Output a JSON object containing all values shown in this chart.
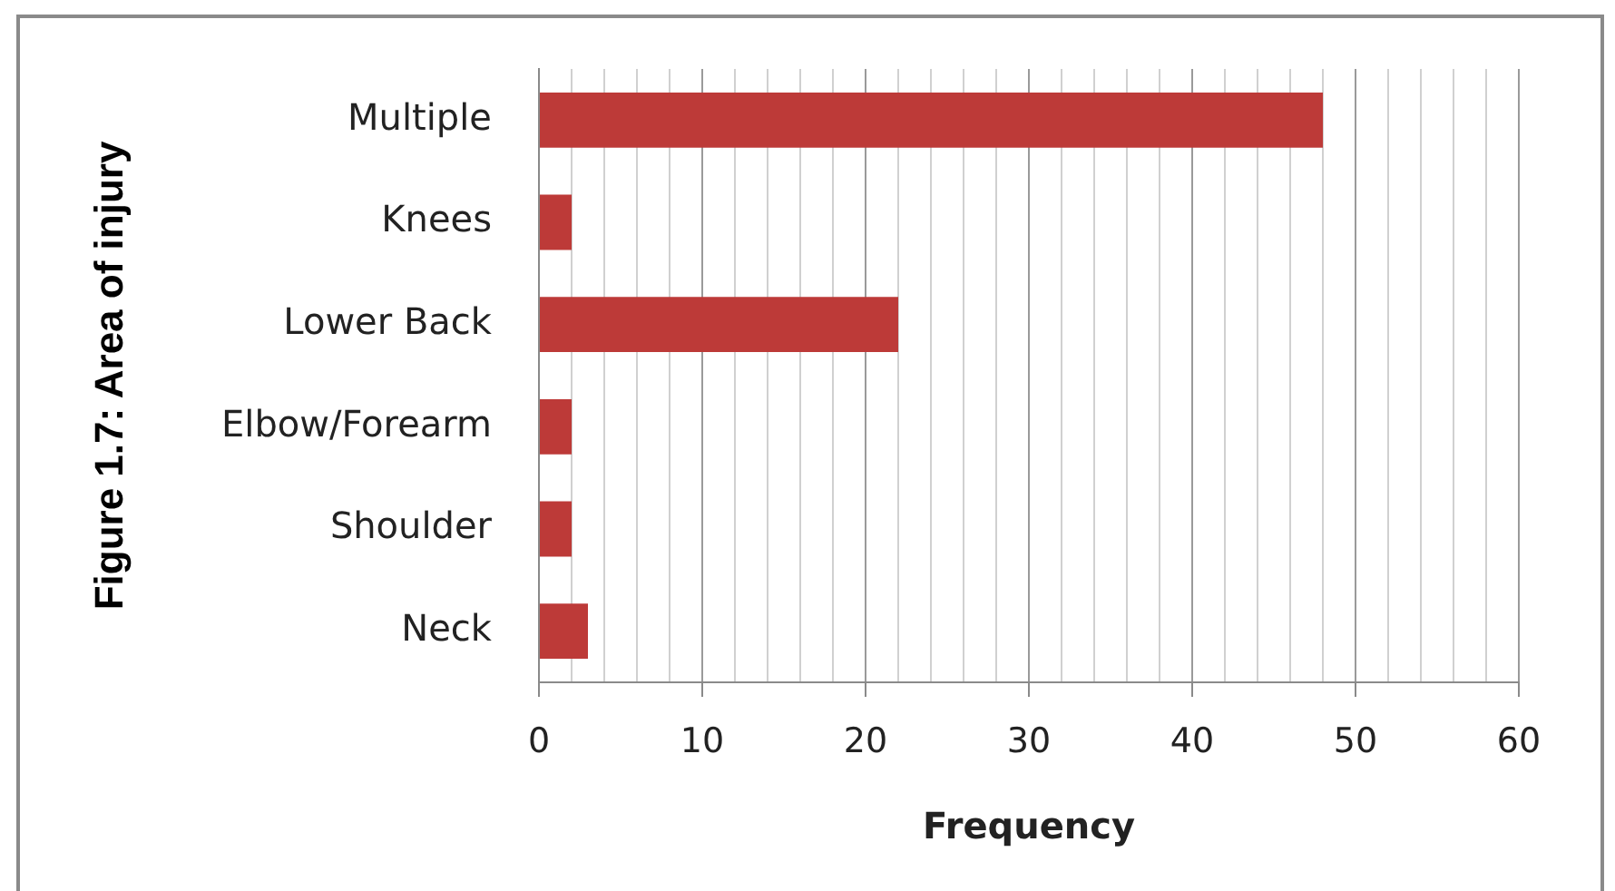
{
  "chart_data": {
    "type": "bar",
    "orientation": "horizontal",
    "ylabel": "Figure 1.7: Area of injury",
    "xlabel": "Frequency",
    "categories": [
      "Multiple",
      "Knees",
      "Lower Back",
      "Elbow/Forearm",
      "Shoulder",
      "Neck"
    ],
    "values": [
      48,
      2,
      22,
      2,
      2,
      3
    ],
    "color": "#bd3a38",
    "xlim": [
      0,
      60
    ],
    "xticks": [
      0,
      {
        "value": 2,
        "label": null
      },
      {
        "value": 4,
        "label": null
      },
      {
        "value": 6,
        "label": null
      },
      {
        "value": 8,
        "label": null
      },
      10,
      {
        "value": 12,
        "label": null
      },
      {
        "value": 14,
        "label": null
      },
      {
        "value": 16,
        "label": null
      },
      {
        "value": 18,
        "label": null
      },
      20,
      {
        "value": 22,
        "label": null
      },
      {
        "value": 24,
        "label": null
      },
      {
        "value": 26,
        "label": null
      },
      {
        "value": 28,
        "label": null
      },
      30,
      {
        "value": 32,
        "label": null
      },
      {
        "value": 34,
        "label": null
      },
      {
        "value": 36,
        "label": null
      },
      {
        "value": 38,
        "label": null
      },
      40,
      {
        "value": 42,
        "label": null
      },
      {
        "value": 44,
        "label": null
      },
      {
        "value": 46,
        "label": null
      },
      {
        "value": 48,
        "label": null
      },
      50,
      {
        "value": 52,
        "label": null
      },
      {
        "value": 54,
        "label": null
      },
      {
        "value": 56,
        "label": null
      },
      {
        "value": 58,
        "label": null
      },
      60
    ],
    "grid": "x"
  }
}
